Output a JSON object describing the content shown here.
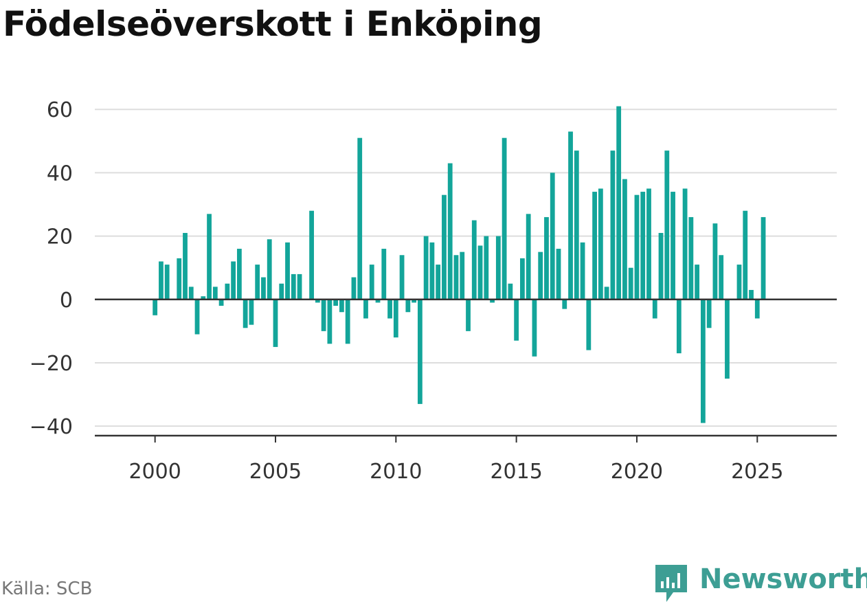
{
  "title": "Födelseöverskott i Enköping",
  "source": "Källa: SCB",
  "brand": {
    "name": "Newsworthy",
    "icon": "newsworthy-logo-icon",
    "color": "#3d9e94"
  },
  "colors": {
    "bar": "#13a59a",
    "grid": "#dddddd",
    "axis": "#333333"
  },
  "chart_data": {
    "type": "bar",
    "title": "Födelseöverskott i Enköping",
    "xlabel": "",
    "ylabel": "",
    "frequency": "quarterly",
    "ylim": [
      -43,
      62
    ],
    "xlim": [
      1997.5,
      2028.3
    ],
    "yticks": [
      -40,
      -20,
      0,
      20,
      40,
      60
    ],
    "yticklabels": [
      "−40",
      "−20",
      "0",
      "20",
      "40",
      "60"
    ],
    "xticks": [
      2000,
      2005,
      2010,
      2015,
      2020,
      2025
    ],
    "xticklabels": [
      "2000",
      "2005",
      "2010",
      "2015",
      "2020",
      "2025"
    ],
    "grid": true,
    "series": [
      {
        "x": [
          "2000 Q1",
          "2000 Q2",
          "2000 Q3",
          "2000 Q4",
          "2001 Q1",
          "2001 Q2",
          "2001 Q3",
          "2001 Q4",
          "2002 Q1",
          "2002 Q2",
          "2002 Q3",
          "2002 Q4",
          "2003 Q1",
          "2003 Q2",
          "2003 Q3",
          "2003 Q4",
          "2004 Q1",
          "2004 Q2",
          "2004 Q3",
          "2004 Q4",
          "2005 Q1",
          "2005 Q2",
          "2005 Q3",
          "2005 Q4",
          "2006 Q1",
          "2006 Q2",
          "2006 Q3",
          "2006 Q4",
          "2007 Q1",
          "2007 Q2",
          "2007 Q3",
          "2007 Q4",
          "2008 Q1",
          "2008 Q2",
          "2008 Q3",
          "2008 Q4",
          "2009 Q1",
          "2009 Q2",
          "2009 Q3",
          "2009 Q4",
          "2010 Q1",
          "2010 Q2",
          "2010 Q3",
          "2010 Q4",
          "2011 Q1",
          "2011 Q2",
          "2011 Q3",
          "2011 Q4",
          "2012 Q1",
          "2012 Q2",
          "2012 Q3",
          "2012 Q4",
          "2013 Q1",
          "2013 Q2",
          "2013 Q3",
          "2013 Q4",
          "2014 Q1",
          "2014 Q2",
          "2014 Q3",
          "2014 Q4",
          "2015 Q1",
          "2015 Q2",
          "2015 Q3",
          "2015 Q4",
          "2016 Q1",
          "2016 Q2",
          "2016 Q3",
          "2016 Q4",
          "2017 Q1",
          "2017 Q2",
          "2017 Q3",
          "2017 Q4",
          "2018 Q1",
          "2018 Q2",
          "2018 Q3",
          "2018 Q4",
          "2019 Q1",
          "2019 Q2",
          "2019 Q3",
          "2019 Q4",
          "2020 Q1",
          "2020 Q2",
          "2020 Q3",
          "2020 Q4",
          "2021 Q1",
          "2021 Q2",
          "2021 Q3",
          "2021 Q4",
          "2022 Q1",
          "2022 Q2",
          "2022 Q3",
          "2022 Q4",
          "2023 Q1",
          "2023 Q2",
          "2023 Q3",
          "2023 Q4",
          "2024 Q1",
          "2024 Q2",
          "2024 Q3",
          "2024 Q4",
          "2025 Q1",
          "2025 Q2"
        ],
        "values": [
          -5,
          12,
          11,
          0,
          13,
          21,
          4,
          -11,
          1,
          27,
          4,
          -2,
          5,
          12,
          16,
          -9,
          -8,
          11,
          7,
          19,
          -15,
          5,
          18,
          8,
          8,
          0,
          28,
          -1,
          -10,
          -14,
          -2,
          -4,
          -14,
          7,
          51,
          -6,
          11,
          -1,
          16,
          -6,
          -12,
          14,
          -4,
          -1,
          -33,
          20,
          18,
          11,
          33,
          43,
          14,
          15,
          -10,
          25,
          17,
          20,
          -1,
          20,
          51,
          5,
          -13,
          13,
          27,
          -18,
          15,
          26,
          40,
          16,
          -3,
          53,
          47,
          18,
          -16,
          34,
          35,
          4,
          47,
          61,
          38,
          10,
          33,
          34,
          35,
          -6,
          21,
          47,
          34,
          -17,
          35,
          26,
          11,
          -39,
          -9,
          24,
          14,
          -25,
          0,
          11,
          28,
          3,
          -6,
          26
        ]
      }
    ]
  }
}
